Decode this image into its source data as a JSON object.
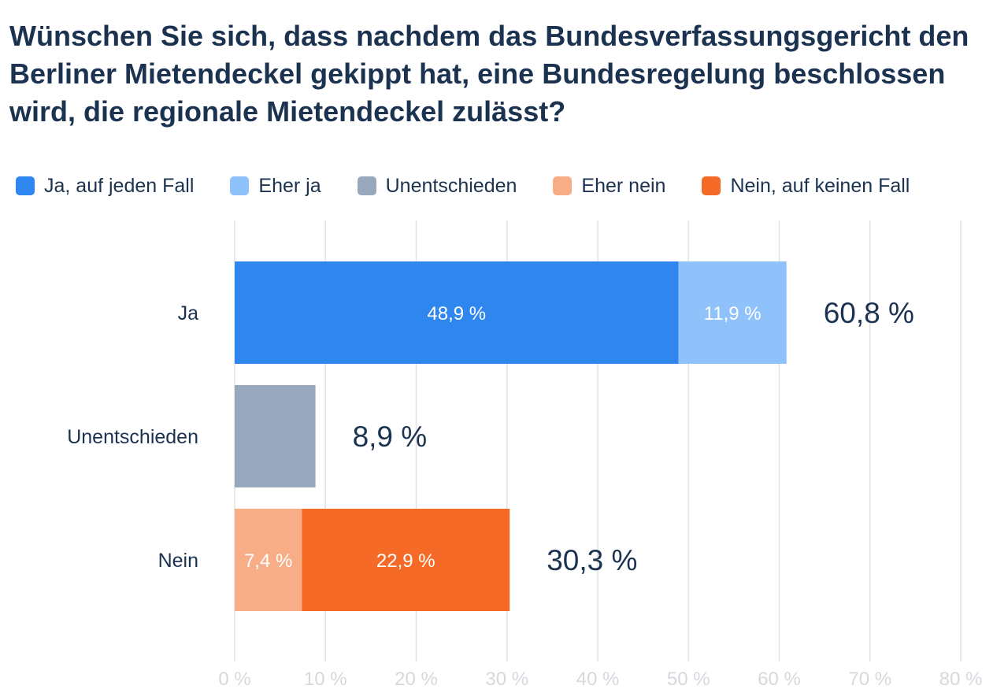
{
  "title": "Wünschen Sie sich, dass nachdem das Bundesverfassungsgericht den Berliner Mietendeckel gekippt hat, eine Bundesregelung beschlossen wird, die regionale Mietendeckel zulässt?",
  "legend": [
    {
      "label": "Ja, auf jeden Fall",
      "color": "#2e86ee"
    },
    {
      "label": "Eher ja",
      "color": "#8fc2fb"
    },
    {
      "label": "Unentschieden",
      "color": "#97a8bc"
    },
    {
      "label": "Eher nein",
      "color": "#f7ae86"
    },
    {
      "label": "Nein, auf keinen Fall",
      "color": "#f56a26"
    }
  ],
  "chart_data": {
    "type": "bar",
    "orientation": "horizontal",
    "stacked": true,
    "title": "Wünschen Sie sich, dass nachdem das Bundesverfassungsgericht den Berliner Mietendeckel gekippt hat, eine Bundesregelung beschlossen wird, die regionale Mietendeckel zulässt?",
    "categories": [
      "Ja",
      "Unentschieden",
      "Nein"
    ],
    "xlim": [
      0,
      80
    ],
    "ticks": [
      0,
      10,
      20,
      30,
      40,
      50,
      60,
      70,
      80
    ],
    "tick_labels": [
      "0 %",
      "10 %",
      "20 %",
      "30 %",
      "40 %",
      "50 %",
      "60 %",
      "70 %",
      "80 %"
    ],
    "grid": true,
    "legend_position": "top-left",
    "bars": [
      {
        "category": "Ja",
        "total_label": "60,8 %",
        "total": 60.8,
        "segments": [
          {
            "series": "Ja, auf jeden Fall",
            "value": 48.9,
            "label": "48,9 %",
            "color": "#2e86ee"
          },
          {
            "series": "Eher ja",
            "value": 11.9,
            "label": "11,9 %",
            "color": "#8fc2fb"
          }
        ]
      },
      {
        "category": "Unentschieden",
        "total_label": "8,9 %",
        "total": 8.9,
        "segments": [
          {
            "series": "Unentschieden",
            "value": 8.9,
            "label": "",
            "color": "#97a8bc"
          }
        ]
      },
      {
        "category": "Nein",
        "total_label": "30,3 %",
        "total": 30.3,
        "segments": [
          {
            "series": "Eher nein",
            "value": 7.4,
            "label": "7,4 %",
            "color": "#f7ae86"
          },
          {
            "series": "Nein, auf keinen Fall",
            "value": 22.9,
            "label": "22,9 %",
            "color": "#f56a26"
          }
        ]
      }
    ]
  }
}
